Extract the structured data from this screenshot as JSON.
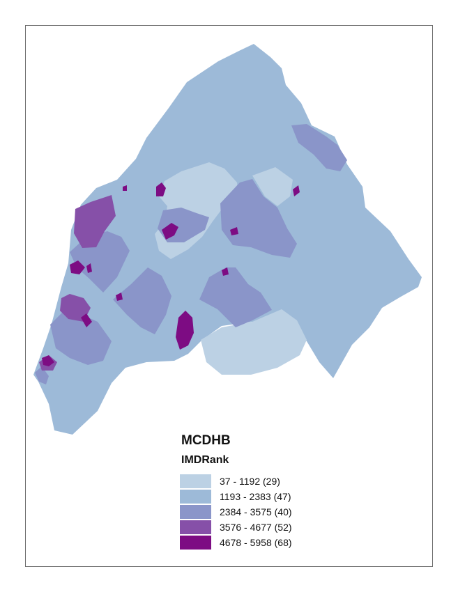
{
  "legend": {
    "title": "MCDHB",
    "field": "IMDRank",
    "classes": [
      {
        "label": "37 - 1192 (29)",
        "color": "#bcd1e4"
      },
      {
        "label": "1193 - 2383 (47)",
        "color": "#9dbad8"
      },
      {
        "label": "2384 - 3575 (40)",
        "color": "#8a95c9"
      },
      {
        "label": "3576 - 4677 (52)",
        "color": "#8650a8"
      },
      {
        "label": "4678 - 5958 (68)",
        "color": "#7d0c83"
      }
    ]
  }
}
